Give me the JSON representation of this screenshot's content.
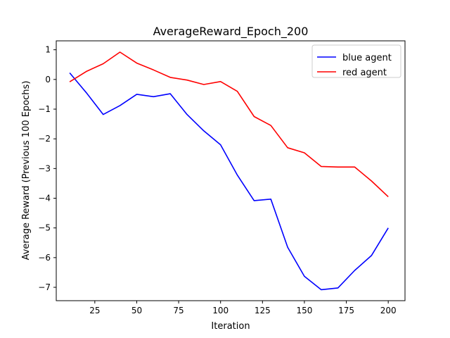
{
  "chart_data": {
    "type": "line",
    "title": "AverageReward_Epoch_200",
    "xlabel": "Iteration",
    "ylabel": "Average Reward (Previous 100 Epochs)",
    "xlim": [
      2,
      210
    ],
    "ylim": [
      -7.45,
      1.3
    ],
    "xticks": [
      25,
      50,
      75,
      100,
      125,
      150,
      175,
      200
    ],
    "yticks": [
      1,
      0,
      -1,
      -2,
      -3,
      -4,
      -5,
      -6,
      -7
    ],
    "x": [
      10,
      20,
      30,
      40,
      50,
      60,
      70,
      80,
      90,
      100,
      110,
      120,
      130,
      140,
      150,
      160,
      170,
      180,
      190,
      200
    ],
    "series": [
      {
        "name": "blue agent",
        "color": "#0000ff",
        "values": [
          0.22,
          -0.45,
          -1.18,
          -0.88,
          -0.5,
          -0.58,
          -0.48,
          -1.18,
          -1.73,
          -2.2,
          -3.22,
          -4.08,
          -4.03,
          -5.65,
          -6.63,
          -7.08,
          -7.02,
          -6.43,
          -5.93,
          -5.0
        ]
      },
      {
        "name": "red agent",
        "color": "#ff0000",
        "values": [
          -0.08,
          0.27,
          0.53,
          0.92,
          0.55,
          0.32,
          0.07,
          -0.02,
          -0.17,
          -0.07,
          -0.4,
          -1.25,
          -1.55,
          -2.3,
          -2.47,
          -2.93,
          -2.95,
          -2.95,
          -3.42,
          -3.95
        ]
      }
    ],
    "legend_position": "top-right",
    "grid": false
  }
}
